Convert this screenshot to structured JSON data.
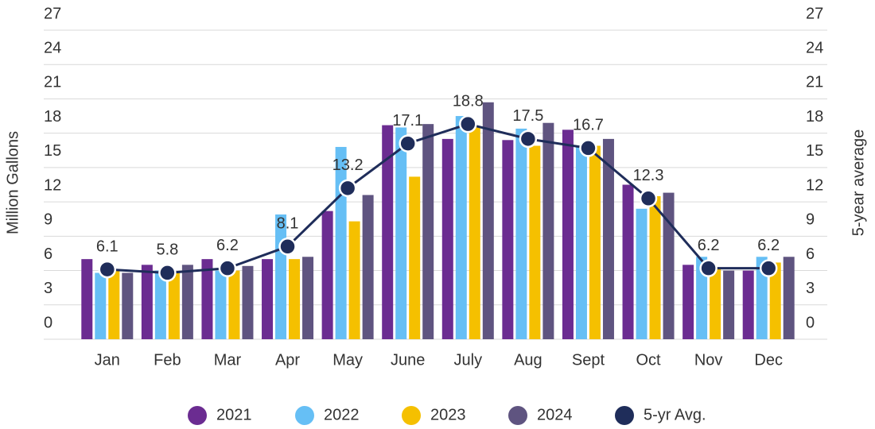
{
  "chart_data": {
    "type": "bar",
    "y_label": "Million Gallons",
    "y2_label": "5-year average",
    "categories": [
      "Jan",
      "Feb",
      "Mar",
      "Apr",
      "May",
      "June",
      "July",
      "Aug",
      "Sept",
      "Oct",
      "Nov",
      "Dec"
    ],
    "series": [
      {
        "name": "2021",
        "color": "#6b2c91",
        "values": [
          7.0,
          6.5,
          7.0,
          7.0,
          11.2,
          18.7,
          17.5,
          17.4,
          18.3,
          13.5,
          6.5,
          6.0
        ]
      },
      {
        "name": "2022",
        "color": "#66bff5",
        "values": [
          5.8,
          6.0,
          6.0,
          10.9,
          16.8,
          18.5,
          19.5,
          18.4,
          16.8,
          11.4,
          7.2,
          7.2
        ]
      },
      {
        "name": "2023",
        "color": "#f5c000",
        "values": [
          6.0,
          5.8,
          6.0,
          7.0,
          10.3,
          14.2,
          18.5,
          16.9,
          16.9,
          12.5,
          6.2,
          6.7
        ]
      },
      {
        "name": "2024",
        "color": "#5f5480",
        "values": [
          5.8,
          6.5,
          6.4,
          7.2,
          12.6,
          18.8,
          20.7,
          18.9,
          17.5,
          12.8,
          6.0,
          7.2
        ]
      },
      {
        "name": "5-yr Avg.",
        "color": "#1f2d5a",
        "type": "line",
        "axis": "y2",
        "values": [
          6.1,
          5.8,
          6.2,
          8.1,
          13.2,
          17.1,
          18.8,
          17.5,
          16.7,
          12.3,
          6.2,
          6.2
        ]
      }
    ],
    "ylim": [
      0,
      27
    ],
    "yticks": [
      0,
      3,
      6,
      9,
      12,
      15,
      18,
      21,
      24,
      27
    ],
    "y2lim": [
      0,
      27
    ],
    "y2ticks": [
      0,
      3,
      6,
      9,
      12,
      15,
      18,
      21,
      24,
      27
    ],
    "grid": true,
    "legend": "bottom"
  }
}
